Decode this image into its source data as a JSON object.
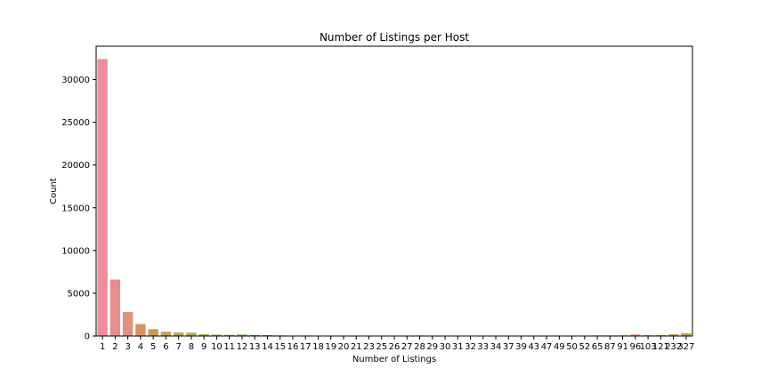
{
  "chart_data": {
    "type": "bar",
    "title": "Number of Listings per Host",
    "xlabel": "Number of Listings",
    "ylabel": "Count",
    "ylim": [
      0,
      33900
    ],
    "yticks": [
      0,
      5000,
      10000,
      15000,
      20000,
      25000,
      30000
    ],
    "grid": false,
    "legend": "none",
    "categories": [
      "1",
      "2",
      "3",
      "4",
      "5",
      "6",
      "7",
      "8",
      "9",
      "10",
      "11",
      "12",
      "13",
      "14",
      "15",
      "16",
      "17",
      "18",
      "19",
      "20",
      "21",
      "23",
      "25",
      "26",
      "27",
      "28",
      "29",
      "30",
      "31",
      "32",
      "33",
      "34",
      "37",
      "39",
      "43",
      "47",
      "49",
      "50",
      "52",
      "65",
      "87",
      "91",
      "96",
      "103",
      "121",
      "232",
      "327"
    ],
    "values": [
      32400,
      6600,
      2800,
      1400,
      800,
      500,
      400,
      380,
      200,
      160,
      130,
      170,
      110,
      100,
      70,
      40,
      60,
      55,
      25,
      20,
      25,
      50,
      25,
      25,
      25,
      60,
      25,
      20,
      45,
      25,
      40,
      45,
      25,
      25,
      25,
      25,
      60,
      20,
      40,
      65,
      70,
      80,
      180,
      90,
      120,
      210,
      320
    ],
    "colors": [
      "#ea8f9b",
      "#e58f8d",
      "#e1917b",
      "#db9065",
      "#c99a55",
      "#c7a055",
      "#b9a24f",
      "#a9a64e",
      "#9fa94e",
      "#91ad4e",
      "#81b04e",
      "#6bb454",
      "#4db45c",
      "#4cb472",
      "#4cb484",
      "#4db593",
      "#4db49e",
      "#4db5a8",
      "#4fb5b3",
      "#50b6bd",
      "#52b7c5",
      "#55b6cc",
      "#5ab5d4",
      "#5fb3d9",
      "#68b1e0",
      "#74aee6",
      "#80a9ec",
      "#8fa5ef",
      "#9b9ff2",
      "#a999f2",
      "#b693f2",
      "#c28df2",
      "#cd89ee",
      "#d885e8",
      "#e283e0",
      "#e883d6",
      "#ee83cc",
      "#ef85be",
      "#ef87b2",
      "#ed88a6",
      "#ea8f9b",
      "#e58f8d",
      "#e1917b",
      "#db9065",
      "#c99a55",
      "#c7a055",
      "#b9a24f"
    ]
  }
}
